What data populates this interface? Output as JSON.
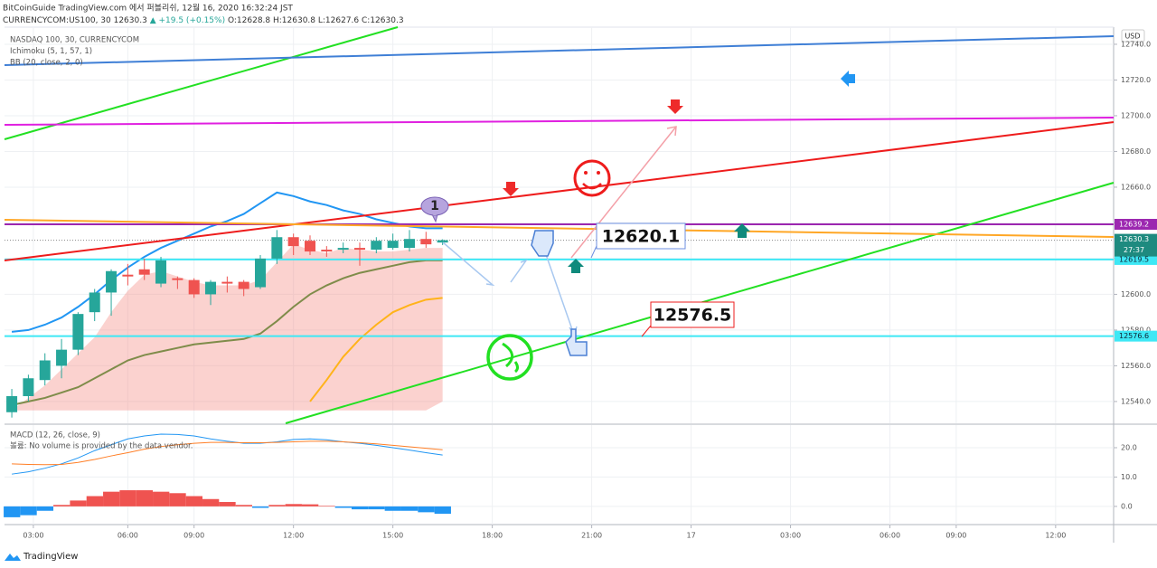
{
  "header": {
    "publisher": "BitCoinGuide TradingView.com 에서 퍼블리쉬, 12월 16, 2020 16:32:24 JST",
    "symbol": "CURRENCYCOM:US100, 30  12630.3",
    "change": "▲ +19.5 (+0.15%)",
    "ohlc": "O:12628.8  H:12630.8  L:12627.6  C:12630.3",
    "currency": "USD"
  },
  "footer": {
    "brand": "TradingView"
  },
  "chart_data": [
    {
      "type": "candlestick",
      "legend": [
        "NASDAQ 100, 30, CURRENCYCOM",
        "Ichimoku (5, 1, 57, 1)",
        "BB (20, close, 2, 0)"
      ],
      "x": [
        0,
        1,
        2,
        3,
        4,
        5,
        6,
        7,
        8,
        9,
        10,
        11,
        12,
        13,
        14,
        15,
        16,
        17,
        18,
        19,
        20,
        21,
        22,
        23,
        24,
        25,
        26
      ],
      "open": [
        12534,
        12543,
        12552,
        12560,
        12569,
        12590,
        12601,
        12611,
        12614,
        12606,
        12609,
        12608,
        12600,
        12607,
        12607,
        12604,
        12620,
        12632,
        12630,
        12625,
        12625,
        12626,
        12625,
        12626,
        12626,
        12631,
        12629
      ],
      "high": [
        12547,
        12555,
        12567,
        12575,
        12590,
        12603,
        12614,
        12617,
        12620,
        12621,
        12610,
        12609,
        12608,
        12610,
        12608,
        12622,
        12636,
        12634,
        12633,
        12627,
        12629,
        12629,
        12632,
        12634,
        12636,
        12635,
        12630.8
      ],
      "low": [
        12531,
        12540,
        12549,
        12553,
        12566,
        12585,
        12588,
        12605,
        12608,
        12604,
        12603,
        12598,
        12594,
        12601,
        12599,
        12603,
        12617,
        12622,
        12622,
        12621,
        12623,
        12616,
        12623,
        12625,
        12624,
        12626,
        12627.6
      ],
      "close": [
        12543,
        12553,
        12563,
        12569,
        12589,
        12601,
        12613,
        12610,
        12611,
        12619,
        12608,
        12600,
        12607,
        12606,
        12603,
        12620,
        12632,
        12627,
        12624,
        12624,
        12626,
        12625,
        12630,
        12630,
        12631,
        12628,
        12630.3
      ],
      "up_color": "#26a69a",
      "down_color": "#ef5350",
      "lines": [
        {
          "color": "#2196f3",
          "values": [
            12579,
            12580,
            12583,
            12587,
            12593,
            12600,
            12608,
            12615,
            12621,
            12626,
            12630,
            12634,
            12638,
            12641,
            12645,
            12651,
            12657,
            12655,
            12652,
            12650,
            12647,
            12645,
            12642,
            12640,
            12638,
            12637,
            12637
          ]
        },
        {
          "color": "#7f8c4a",
          "values": [
            12538,
            12540,
            12542,
            12545,
            12548,
            12553,
            12558,
            12563,
            12566,
            12568,
            12570,
            12572,
            12573,
            12574,
            12575,
            12578,
            12585,
            12593,
            12600,
            12605,
            12609,
            12612,
            12614,
            12616,
            12618,
            12619,
            12619
          ]
        },
        {
          "color": "#ffb31a",
          "values": [
            null,
            null,
            null,
            null,
            null,
            null,
            null,
            null,
            null,
            null,
            null,
            null,
            null,
            null,
            null,
            null,
            null,
            null,
            12540,
            12552,
            12565,
            12575,
            12583,
            12590,
            12594,
            12597,
            12598
          ]
        }
      ],
      "cloud": {
        "color": "rgba(244,143,136,0.4)",
        "upper": [
          12535,
          12542,
          12549,
          12558,
          12567,
          12576,
          12590,
          12602,
          12611,
          12613,
          12610,
          12607,
          12605,
          12605,
          12605,
          12608,
          12618,
          12628,
          12625,
          12623,
          12626,
          12625,
          12624,
          12624,
          12625,
          12626,
          12626
        ],
        "lower": [
          12535,
          12535,
          12535,
          12535,
          12535,
          12535,
          12535,
          12535,
          12535,
          12535,
          12535,
          12535,
          12535,
          12535,
          12535,
          12535,
          12535,
          12535,
          12535,
          12535,
          12535,
          12535,
          12535,
          12535,
          12535,
          12535,
          12540
        ]
      },
      "xlim": [
        -0.44,
        66.5
      ],
      "xticks": [
        {
          "value": 1.3,
          "label": "03:00"
        },
        {
          "value": 7,
          "label": "06:00"
        },
        {
          "value": 11,
          "label": "09:00"
        },
        {
          "value": 17,
          "label": "12:00"
        },
        {
          "value": 23,
          "label": "15:00"
        },
        {
          "value": 29,
          "label": "18:00"
        },
        {
          "value": 35,
          "label": "21:00"
        },
        {
          "value": 41,
          "label": "17"
        },
        {
          "value": 47,
          "label": "03:00"
        },
        {
          "value": 53,
          "label": "06:00"
        },
        {
          "value": 57,
          "label": "09:00"
        },
        {
          "value": 63,
          "label": "12:00"
        }
      ],
      "ylim": [
        12527.8,
        12749.6
      ],
      "yticks": [
        {
          "value": 12540,
          "label": "12540.0"
        },
        {
          "value": 12560,
          "label": "12560.0"
        },
        {
          "value": 12580,
          "label": "12580.0"
        },
        {
          "value": 12600,
          "label": "12600.0"
        },
        {
          "value": 12620,
          "label": "12620.0"
        },
        {
          "value": 12640,
          "label": "12640.0"
        },
        {
          "value": 12660,
          "label": "12660.0"
        },
        {
          "value": 12680,
          "label": "12680.0"
        },
        {
          "value": 12700,
          "label": "12700.0"
        },
        {
          "value": 12720,
          "label": "12720.0"
        },
        {
          "value": 12740,
          "label": "12740.0"
        }
      ],
      "grid": true,
      "price_lines": [
        {
          "value": 12639.2,
          "color": "#9c27b0"
        },
        {
          "value": 12619.5,
          "color": "#3ee8f5"
        },
        {
          "value": 12576.6,
          "color": "#3ee8f5"
        }
      ],
      "current_price": 12630.3,
      "current_color": "#1e8a7f",
      "countdown": "27:37",
      "annotations": [
        "1",
        "12620.1",
        "12576.5"
      ]
    },
    {
      "type": "macd",
      "title": "MACD (12, 26, close, 9)",
      "note": "볼륨: No volume is provided by the data vendor.",
      "macd": {
        "color": "#2196f3",
        "values": [
          11,
          11.8,
          13,
          14.5,
          16.5,
          19,
          21,
          23,
          24,
          24.6,
          24.5,
          24,
          23,
          22.2,
          21.5,
          21.5,
          22,
          22.8,
          23,
          22.7,
          22,
          21.5,
          20.8,
          20,
          19.2,
          18.3,
          17.5
        ]
      },
      "signal": {
        "color": "#ff7f27",
        "values": [
          14.5,
          14.3,
          14.2,
          14.3,
          15,
          16,
          17.2,
          18.3,
          19.5,
          20.4,
          21,
          21.5,
          21.8,
          21.8,
          21.7,
          21.7,
          21.8,
          22,
          22.2,
          22.2,
          22,
          21.7,
          21.3,
          20.8,
          20.3,
          19.8,
          19.3
        ]
      },
      "histogram": {
        "pos_color": "#ef5350",
        "neg_color": "#2196f3",
        "values": [
          -3.7,
          -3,
          -1.5,
          0.5,
          2,
          3.5,
          5,
          5.5,
          5.5,
          5,
          4.5,
          3.5,
          2.5,
          1.5,
          0.5,
          -0.5,
          0.5,
          0.8,
          0.7,
          0.2,
          -0.5,
          -1,
          -1,
          -1.5,
          -1.5,
          -2,
          -2.5
        ]
      },
      "ylim": [
        -6.2,
        27.7
      ],
      "yticks": [
        {
          "value": 0,
          "label": "0.0"
        },
        {
          "value": 10,
          "label": "10.0"
        },
        {
          "value": 20,
          "label": "20.0"
        }
      ]
    }
  ]
}
